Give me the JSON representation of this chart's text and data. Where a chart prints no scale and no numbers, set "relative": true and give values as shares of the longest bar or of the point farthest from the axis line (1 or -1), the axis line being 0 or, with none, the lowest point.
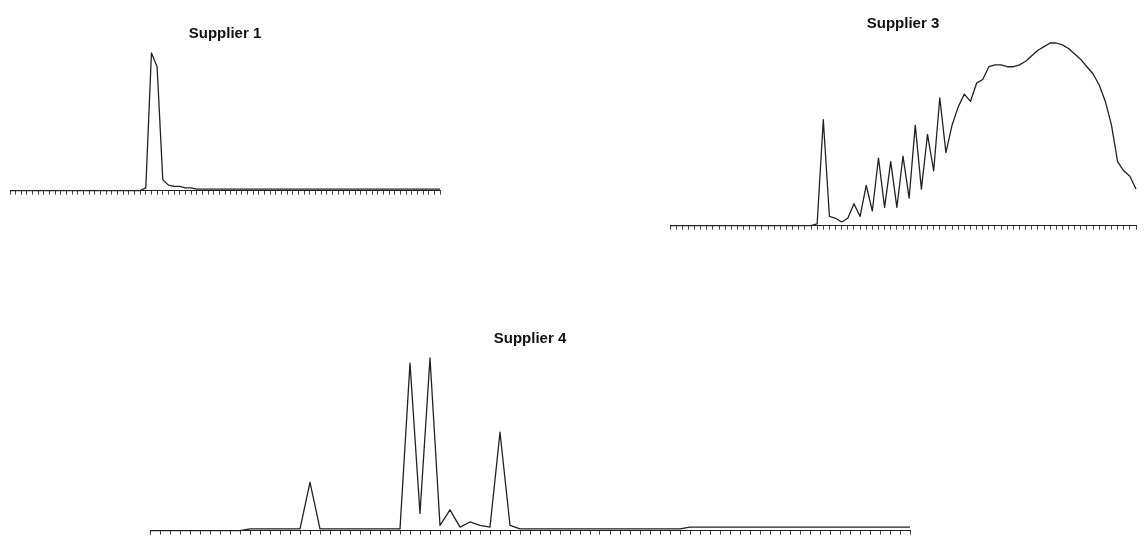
{
  "chart_data": [
    {
      "type": "line",
      "title": "Supplier 1",
      "relative": true,
      "grid": false,
      "marker": "none",
      "categories": [
        null,
        null,
        null,
        null,
        null,
        null,
        null,
        null,
        null,
        null,
        null,
        null,
        null,
        null,
        null,
        null,
        null,
        null,
        null,
        null,
        null,
        null,
        null,
        null,
        null,
        null,
        null,
        null,
        null,
        null,
        null,
        null,
        null,
        null,
        null,
        null,
        null,
        null,
        null,
        null,
        null,
        null,
        null,
        null,
        null,
        null,
        null,
        null,
        null,
        null,
        null,
        null,
        null,
        null,
        null,
        null,
        null,
        null,
        null,
        null,
        null,
        null,
        null,
        null,
        null,
        null,
        null,
        null,
        null,
        null,
        null,
        null,
        null,
        null,
        null,
        null,
        null
      ],
      "series": [
        {
          "color": "#222222",
          "values": [
            0,
            0,
            0,
            0,
            0,
            0,
            0,
            0,
            0,
            0,
            0,
            0,
            0,
            0,
            0,
            0,
            0,
            0,
            0,
            0,
            0,
            0,
            0,
            0,
            0.02,
            1.0,
            0.9,
            0.08,
            0.04,
            0.03,
            0.03,
            0.02,
            0.02,
            0.01,
            0.01,
            0.01,
            0.01,
            0.01,
            0.01,
            0.01,
            0.01,
            0.01,
            0.01,
            0.01,
            0.01,
            0.01,
            0.01,
            0.01,
            0.01,
            0.01,
            0.01,
            0.01,
            0.01,
            0.01,
            0.01,
            0.01,
            0.01,
            0.01,
            0.01,
            0.01,
            0.01,
            0.01,
            0.01,
            0.01,
            0.01,
            0.01,
            0.01,
            0.01,
            0.01,
            0.01,
            0.01,
            0.01,
            0.01,
            0.01,
            0.01,
            0.01,
            0.01
          ]
        }
      ]
    },
    {
      "type": "line",
      "title": "Supplier 3",
      "relative": true,
      "grid": false,
      "marker": "none",
      "categories": [
        null,
        null,
        null,
        null,
        null,
        null,
        null,
        null,
        null,
        null,
        null,
        null,
        null,
        null,
        null,
        null,
        null,
        null,
        null,
        null,
        null,
        null,
        null,
        null,
        null,
        null,
        null,
        null,
        null,
        null,
        null,
        null,
        null,
        null,
        null,
        null,
        null,
        null,
        null,
        null,
        null,
        null,
        null,
        null,
        null,
        null,
        null,
        null,
        null,
        null,
        null,
        null,
        null,
        null,
        null,
        null,
        null,
        null,
        null,
        null,
        null,
        null,
        null,
        null,
        null,
        null,
        null,
        null,
        null,
        null,
        null,
        null,
        null,
        null,
        null,
        null,
        null
      ],
      "series": [
        {
          "color": "#222222",
          "values": [
            0,
            0,
            0,
            0,
            0,
            0,
            0,
            0,
            0,
            0,
            0,
            0,
            0,
            0,
            0,
            0,
            0,
            0,
            0,
            0,
            0,
            0,
            0,
            0,
            0.01,
            0.58,
            0.05,
            0.04,
            0.02,
            0.04,
            0.12,
            0.05,
            0.22,
            0.08,
            0.37,
            0.1,
            0.35,
            0.1,
            0.38,
            0.15,
            0.55,
            0.2,
            0.5,
            0.3,
            0.7,
            0.4,
            0.55,
            0.65,
            0.72,
            0.68,
            0.78,
            0.8,
            0.87,
            0.88,
            0.88,
            0.87,
            0.87,
            0.88,
            0.9,
            0.93,
            0.96,
            0.98,
            1.0,
            1.0,
            0.99,
            0.97,
            0.94,
            0.91,
            0.87,
            0.83,
            0.77,
            0.68,
            0.55,
            0.35,
            0.3,
            0.27,
            0.2
          ]
        }
      ]
    },
    {
      "type": "line",
      "title": "Supplier 4",
      "relative": true,
      "grid": false,
      "marker": "none",
      "categories": [
        null,
        null,
        null,
        null,
        null,
        null,
        null,
        null,
        null,
        null,
        null,
        null,
        null,
        null,
        null,
        null,
        null,
        null,
        null,
        null,
        null,
        null,
        null,
        null,
        null,
        null,
        null,
        null,
        null,
        null,
        null,
        null,
        null,
        null,
        null,
        null,
        null,
        null,
        null,
        null,
        null,
        null,
        null,
        null,
        null,
        null,
        null,
        null,
        null,
        null,
        null,
        null,
        null,
        null,
        null,
        null,
        null,
        null,
        null,
        null,
        null,
        null,
        null,
        null,
        null,
        null,
        null,
        null,
        null,
        null,
        null,
        null,
        null,
        null,
        null,
        null,
        null
      ],
      "series": [
        {
          "color": "#222222",
          "values": [
            0,
            0,
            0,
            0,
            0,
            0,
            0,
            0,
            0,
            0,
            0.01,
            0.01,
            0.01,
            0.01,
            0.01,
            0.01,
            0.28,
            0.01,
            0.01,
            0.01,
            0.01,
            0.01,
            0.01,
            0.01,
            0.01,
            0.01,
            0.97,
            0.1,
            1.0,
            0.03,
            0.12,
            0.02,
            0.05,
            0.03,
            0.02,
            0.57,
            0.03,
            0.01,
            0.01,
            0.01,
            0.01,
            0.01,
            0.01,
            0.01,
            0.01,
            0.01,
            0.01,
            0.01,
            0.01,
            0.01,
            0.01,
            0.01,
            0.01,
            0.01,
            0.02,
            0.02,
            0.02,
            0.02,
            0.02,
            0.02,
            0.02,
            0.02,
            0.02,
            0.02,
            0.02,
            0.02,
            0.02,
            0.02,
            0.02,
            0.02,
            0.02,
            0.02,
            0.02,
            0.02,
            0.02,
            0.02,
            0.02
          ]
        }
      ]
    }
  ]
}
